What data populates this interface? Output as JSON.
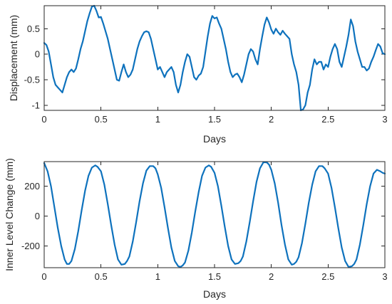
{
  "chart_data": [
    {
      "type": "line",
      "xlabel": "Days",
      "ylabel": "Displacement (mm)",
      "xlim": [
        0,
        3
      ],
      "ylim": [
        -1.1,
        0.95
      ],
      "xticks": [
        0,
        0.5,
        1,
        1.5,
        2,
        2.5,
        3
      ],
      "xtick_labels": [
        "0",
        "0.5",
        "1",
        "1.5",
        "2",
        "2.5",
        "3"
      ],
      "yticks": [
        -1,
        -0.5,
        0,
        0.5
      ],
      "ytick_labels": [
        "-1",
        "-0.5",
        "0",
        "0.5"
      ],
      "grid": false,
      "color": "#0e72bd",
      "series": [
        {
          "x": [
            0,
            0.02,
            0.04,
            0.06,
            0.08,
            0.1,
            0.12,
            0.14,
            0.16,
            0.18,
            0.2,
            0.22,
            0.24,
            0.26,
            0.28,
            0.3,
            0.32,
            0.34,
            0.36,
            0.38,
            0.4,
            0.42,
            0.44,
            0.46,
            0.48,
            0.5,
            0.52,
            0.54,
            0.56,
            0.58,
            0.6,
            0.62,
            0.64,
            0.66,
            0.68,
            0.7,
            0.72,
            0.74,
            0.76,
            0.78,
            0.8,
            0.82,
            0.84,
            0.86,
            0.88,
            0.9,
            0.92,
            0.94,
            0.96,
            0.98,
            1.0,
            1.02,
            1.04,
            1.06,
            1.08,
            1.1,
            1.12,
            1.14,
            1.16,
            1.18,
            1.2,
            1.22,
            1.24,
            1.26,
            1.28,
            1.3,
            1.32,
            1.34,
            1.36,
            1.38,
            1.4,
            1.42,
            1.44,
            1.46,
            1.48,
            1.5,
            1.52,
            1.54,
            1.56,
            1.58,
            1.6,
            1.62,
            1.64,
            1.66,
            1.68,
            1.7,
            1.72,
            1.74,
            1.76,
            1.78,
            1.8,
            1.82,
            1.84,
            1.86,
            1.88,
            1.9,
            1.92,
            1.94,
            1.96,
            1.98,
            2.0,
            2.02,
            2.04,
            2.06,
            2.08,
            2.1,
            2.12,
            2.14,
            2.16,
            2.18,
            2.2,
            2.22,
            2.24,
            2.26,
            2.28,
            2.3,
            2.32,
            2.34,
            2.36,
            2.38,
            2.4,
            2.42,
            2.44,
            2.46,
            2.48,
            2.5,
            2.52,
            2.54,
            2.56,
            2.58,
            2.6,
            2.62,
            2.64,
            2.66,
            2.68,
            2.7,
            2.72,
            2.74,
            2.76,
            2.78,
            2.8,
            2.82,
            2.84,
            2.86,
            2.88,
            2.9,
            2.92,
            2.94,
            2.96,
            2.98,
            3.0
          ],
          "y": [
            0.22,
            0.18,
            0.05,
            -0.2,
            -0.45,
            -0.6,
            -0.65,
            -0.7,
            -0.75,
            -0.6,
            -0.45,
            -0.35,
            -0.3,
            -0.35,
            -0.28,
            -0.1,
            0.1,
            0.25,
            0.45,
            0.65,
            0.8,
            0.93,
            0.95,
            0.85,
            0.72,
            0.73,
            0.6,
            0.45,
            0.3,
            0.1,
            -0.1,
            -0.3,
            -0.5,
            -0.52,
            -0.35,
            -0.2,
            -0.35,
            -0.45,
            -0.4,
            -0.3,
            -0.1,
            0.1,
            0.25,
            0.35,
            0.43,
            0.45,
            0.43,
            0.3,
            0.1,
            -0.1,
            -0.3,
            -0.25,
            -0.35,
            -0.45,
            -0.35,
            -0.3,
            -0.25,
            -0.35,
            -0.6,
            -0.75,
            -0.6,
            -0.35,
            -0.15,
            0.0,
            -0.05,
            -0.25,
            -0.45,
            -0.5,
            -0.42,
            -0.38,
            -0.25,
            0.05,
            0.35,
            0.6,
            0.75,
            0.7,
            0.72,
            0.6,
            0.5,
            0.3,
            0.1,
            -0.15,
            -0.35,
            -0.45,
            -0.4,
            -0.38,
            -0.45,
            -0.55,
            -0.4,
            -0.2,
            0.0,
            0.1,
            0.05,
            -0.1,
            -0.2,
            0.1,
            0.35,
            0.58,
            0.72,
            0.62,
            0.48,
            0.4,
            0.5,
            0.43,
            0.38,
            0.46,
            0.4,
            0.35,
            0.3,
            0.0,
            -0.2,
            -0.35,
            -0.6,
            -1.1,
            -1.08,
            -1.0,
            -0.75,
            -0.6,
            -0.3,
            -0.1,
            -0.2,
            -0.15,
            -0.15,
            -0.3,
            -0.2,
            -0.25,
            -0.05,
            0.1,
            0.2,
            0.1,
            -0.15,
            -0.25,
            -0.05,
            0.15,
            0.38,
            0.68,
            0.55,
            0.25,
            0.05,
            -0.1,
            -0.25,
            -0.25,
            -0.32,
            -0.28,
            -0.15,
            -0.05,
            0.08,
            0.2,
            0.15,
            0.02,
            0.0
          ]
        }
      ]
    },
    {
      "type": "line",
      "xlabel": "Days",
      "ylabel": "Inner Level Change (mm)",
      "xlim": [
        0,
        3
      ],
      "ylim": [
        -345,
        365
      ],
      "xticks": [
        0,
        0.5,
        1,
        1.5,
        2,
        2.5,
        3
      ],
      "xtick_labels": [
        "0",
        "0.5",
        "1",
        "1.5",
        "2",
        "2.5",
        "3"
      ],
      "yticks": [
        -200,
        0,
        200
      ],
      "ytick_labels": [
        "-200",
        "0",
        "200"
      ],
      "grid": false,
      "color": "#0e72bd",
      "series": [
        {
          "x": [
            0,
            0.03,
            0.06,
            0.09,
            0.12,
            0.15,
            0.18,
            0.2,
            0.22,
            0.24,
            0.27,
            0.3,
            0.33,
            0.36,
            0.39,
            0.42,
            0.45,
            0.47,
            0.5,
            0.53,
            0.56,
            0.59,
            0.62,
            0.65,
            0.68,
            0.71,
            0.73,
            0.75,
            0.78,
            0.81,
            0.84,
            0.87,
            0.9,
            0.93,
            0.96,
            0.98,
            1.0,
            1.03,
            1.06,
            1.09,
            1.12,
            1.15,
            1.18,
            1.2,
            1.22,
            1.24,
            1.27,
            1.3,
            1.33,
            1.36,
            1.39,
            1.42,
            1.45,
            1.47,
            1.5,
            1.53,
            1.56,
            1.59,
            1.62,
            1.65,
            1.68,
            1.71,
            1.73,
            1.75,
            1.78,
            1.81,
            1.84,
            1.87,
            1.9,
            1.93,
            1.96,
            1.98,
            2.0,
            2.03,
            2.06,
            2.09,
            2.12,
            2.15,
            2.18,
            2.2,
            2.22,
            2.24,
            2.27,
            2.3,
            2.33,
            2.36,
            2.39,
            2.42,
            2.45,
            2.47,
            2.5,
            2.53,
            2.56,
            2.59,
            2.62,
            2.65,
            2.68,
            2.71,
            2.73,
            2.75,
            2.78,
            2.81,
            2.84,
            2.87,
            2.9,
            2.93,
            2.96,
            2.98,
            3.0
          ],
          "y": [
            355,
            300,
            200,
            60,
            -80,
            -200,
            -290,
            -320,
            -320,
            -300,
            -220,
            -100,
            40,
            170,
            270,
            325,
            340,
            330,
            300,
            210,
            80,
            -60,
            -190,
            -290,
            -325,
            -320,
            -300,
            -270,
            -170,
            -40,
            100,
            220,
            305,
            335,
            335,
            320,
            280,
            190,
            60,
            -80,
            -210,
            -300,
            -335,
            -340,
            -330,
            -310,
            -230,
            -110,
            30,
            160,
            270,
            325,
            340,
            330,
            290,
            200,
            70,
            -70,
            -200,
            -290,
            -320,
            -315,
            -300,
            -270,
            -170,
            -40,
            100,
            230,
            320,
            360,
            360,
            345,
            310,
            220,
            90,
            -60,
            -190,
            -290,
            -325,
            -320,
            -305,
            -275,
            -180,
            -50,
            90,
            210,
            300,
            335,
            335,
            320,
            285,
            190,
            60,
            -80,
            -210,
            -300,
            -340,
            -335,
            -320,
            -290,
            -190,
            -60,
            80,
            200,
            285,
            310,
            300,
            290,
            285
          ]
        }
      ]
    }
  ]
}
